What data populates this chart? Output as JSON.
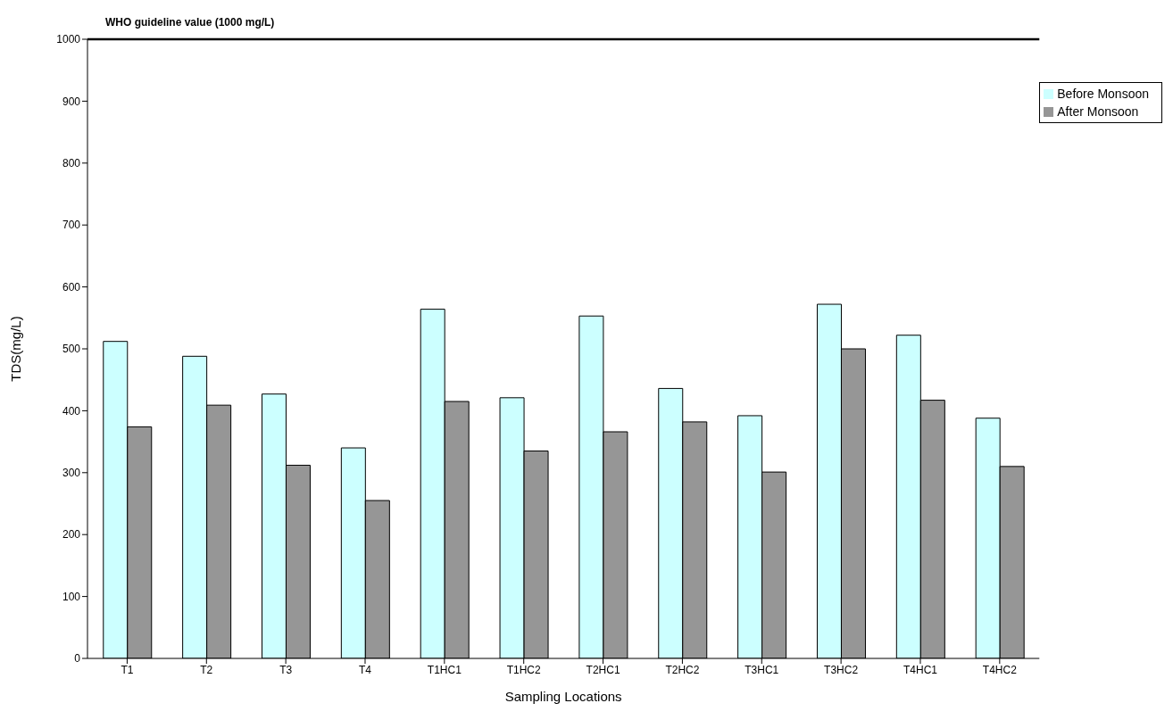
{
  "chart_data": {
    "type": "bar",
    "xlabel": "Sampling Locations",
    "ylabel": "TDS(mg/L)",
    "categories": [
      "T1",
      "T2",
      "T3",
      "T4",
      "T1HC1",
      "T1HC2",
      "T2HC1",
      "T2HC2",
      "T3HC1",
      "T3HC2",
      "T4HC1",
      "T4HC2"
    ],
    "series": [
      {
        "name": "Before Monsoon",
        "color": "#ccffff",
        "values": [
          512,
          488,
          427,
          340,
          564,
          421,
          553,
          436,
          392,
          572,
          522,
          388
        ]
      },
      {
        "name": "After Monsoon",
        "color": "#969696",
        "values": [
          374,
          409,
          312,
          255,
          415,
          335,
          366,
          382,
          301,
          500,
          417,
          310
        ]
      }
    ],
    "ylim": [
      0,
      1000
    ],
    "yticks": [
      0,
      100,
      200,
      300,
      400,
      500,
      600,
      700,
      800,
      900,
      1000
    ],
    "ref_lines": [
      {
        "axis": "y",
        "value": 1000,
        "label": "WHO guideline value (1000 mg/L)",
        "color": "#000000"
      }
    ],
    "grid": false,
    "legend": "top right"
  }
}
